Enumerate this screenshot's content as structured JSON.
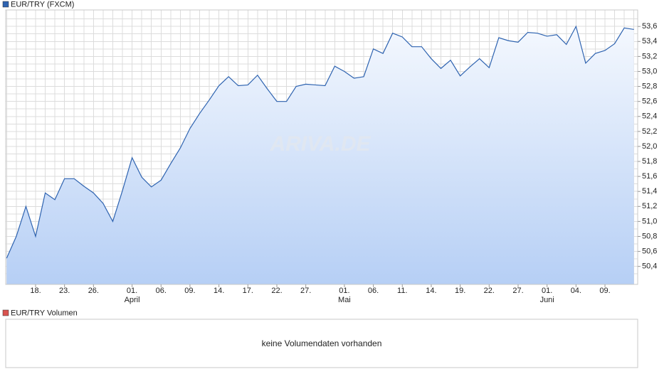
{
  "chart_data": {
    "type": "line",
    "watermark": "ARIVA.DE",
    "categories": [
      null,
      null,
      null,
      "18.",
      null,
      null,
      "23.",
      null,
      null,
      "26.",
      null,
      null,
      null,
      "01.",
      null,
      null,
      "06.",
      null,
      null,
      "09.",
      null,
      null,
      "14.",
      null,
      null,
      "17.",
      null,
      null,
      "22.",
      null,
      null,
      "27.",
      null,
      null,
      null,
      "01.",
      null,
      null,
      "06.",
      null,
      null,
      "11.",
      null,
      null,
      "14.",
      null,
      null,
      "19.",
      null,
      null,
      "22.",
      null,
      null,
      "27.",
      null,
      null,
      "01.",
      null,
      null,
      "04.",
      null,
      null,
      "09.",
      null,
      null,
      null
    ],
    "months": [
      null,
      null,
      null,
      null,
      null,
      null,
      null,
      null,
      null,
      null,
      null,
      null,
      null,
      "April",
      null,
      null,
      null,
      null,
      null,
      null,
      null,
      null,
      null,
      null,
      null,
      null,
      null,
      null,
      null,
      null,
      null,
      null,
      null,
      null,
      null,
      "Mai",
      null,
      null,
      null,
      null,
      null,
      null,
      null,
      null,
      null,
      null,
      null,
      null,
      null,
      null,
      null,
      null,
      null,
      null,
      null,
      null,
      "Juni",
      null,
      null,
      null,
      null,
      null,
      null,
      null,
      null,
      null
    ],
    "series": [
      {
        "name": "EUR/TRY (FXCM)",
        "color": "#2e63b0",
        "values": [
          50.51,
          50.8,
          51.2,
          50.8,
          51.38,
          51.29,
          51.57,
          51.57,
          51.47,
          51.38,
          51.24,
          51.0,
          51.41,
          51.85,
          51.59,
          51.46,
          51.55,
          51.77,
          51.98,
          52.24,
          52.44,
          52.62,
          52.81,
          52.93,
          52.81,
          52.82,
          52.95,
          52.77,
          52.6,
          52.6,
          52.8,
          52.83,
          52.82,
          52.81,
          53.07,
          53.0,
          52.91,
          52.93,
          53.3,
          53.24,
          53.51,
          53.46,
          53.33,
          53.33,
          53.17,
          53.04,
          53.15,
          52.94,
          53.06,
          53.17,
          53.05,
          53.45,
          53.41,
          53.39,
          53.52,
          53.51,
          53.47,
          53.49,
          53.36,
          53.6,
          53.11,
          53.24,
          53.28,
          53.37,
          53.58,
          53.56
        ]
      }
    ],
    "ylim": [
      50.16,
      53.82
    ],
    "yticks": [
      {
        "value": 50.4,
        "label": "50,4"
      },
      {
        "value": 50.6,
        "label": "50,6"
      },
      {
        "value": 50.8,
        "label": "50,8"
      },
      {
        "value": 51.0,
        "label": "51,0"
      },
      {
        "value": 51.2,
        "label": "51,2"
      },
      {
        "value": 51.4,
        "label": "51,4"
      },
      {
        "value": 51.6,
        "label": "51,6"
      },
      {
        "value": 51.8,
        "label": "51,8"
      },
      {
        "value": 52.0,
        "label": "52,0"
      },
      {
        "value": 52.2,
        "label": "52,2"
      },
      {
        "value": 52.4,
        "label": "52,4"
      },
      {
        "value": 52.6,
        "label": "52,6"
      },
      {
        "value": 52.8,
        "label": "52,8"
      },
      {
        "value": 53.0,
        "label": "53,0"
      },
      {
        "value": 53.2,
        "label": "53,2"
      },
      {
        "value": 53.4,
        "label": "53,4"
      },
      {
        "value": 53.6,
        "label": "53,6"
      }
    ],
    "grid": true
  },
  "volume_panel": {
    "title": "EUR/TRY Volumen",
    "message": "keine Volumendaten vorhanden",
    "color": "#d9534f"
  }
}
